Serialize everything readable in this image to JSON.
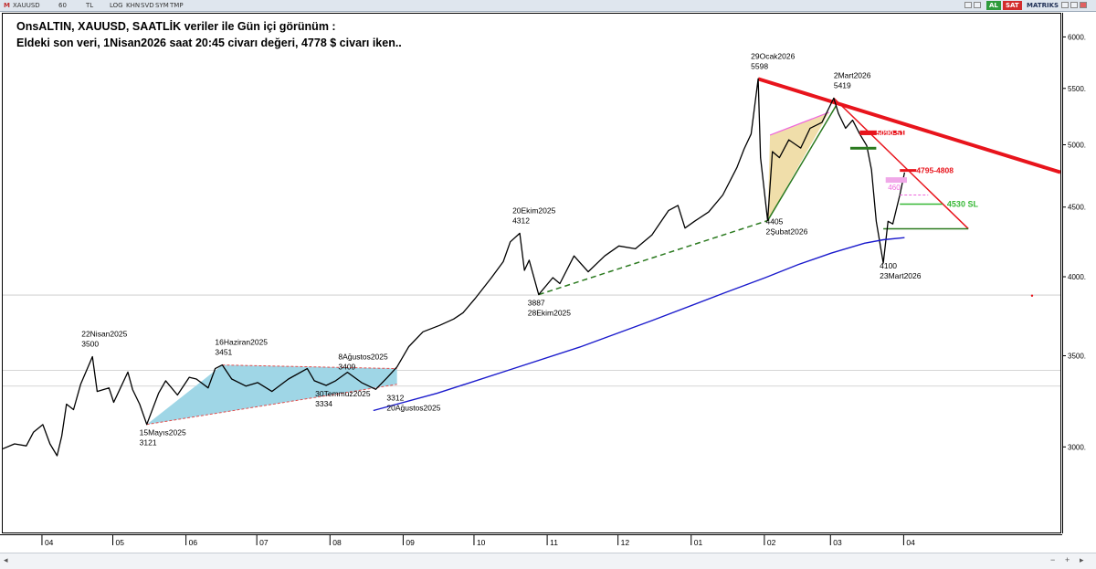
{
  "window": {
    "symbol": "XAUUSD",
    "toolbar_items": [
      "60",
      "TL",
      "LOG",
      "KHN",
      "SVD",
      "SYM",
      "TMP"
    ],
    "flags": [
      "AL",
      "SAT"
    ],
    "matriks": "MATRIKS"
  },
  "heading": {
    "line1": "OnsALTIN, XAUUSD, SAATLİK veriler ile Gün içi görünüm :",
    "line2": "Eldeki son veri, 1Nisan2026 saat 20:45 civarı değeri, 4778 $ civarı iken.."
  },
  "colors": {
    "price": "#000000",
    "ma": "#1a1acc",
    "resistance": "#e8141c",
    "support": "#2b7a1f",
    "wedge_fill": "#9fd6e6",
    "triangle_fill": "#f0deaa",
    "target_green": "#37b836",
    "pink": "#ee66dd"
  },
  "chart_data": {
    "type": "line",
    "title": "",
    "y_scale": "log",
    "ylim": [
      2600,
      6250
    ],
    "y_ticks": [
      3000,
      3500,
      4000,
      4500,
      5000,
      5500,
      6000
    ],
    "y_tick_labels": [
      "3000.",
      "3500.",
      "4000.",
      "4500.",
      "5000.",
      "5500.",
      "6000."
    ],
    "x_range": [
      "2025-03-15",
      "2026-06-06"
    ],
    "x_ticks": [
      {
        "date": "2025-04-01",
        "label": "04"
      },
      {
        "date": "2025-05-01",
        "label": "05"
      },
      {
        "date": "2025-06-01",
        "label": "06"
      },
      {
        "date": "2025-07-01",
        "label": "07"
      },
      {
        "date": "2025-08-01",
        "label": "08"
      },
      {
        "date": "2025-09-01",
        "label": "09"
      },
      {
        "date": "2025-10-01",
        "label": "10"
      },
      {
        "date": "2025-11-01",
        "label": "11"
      },
      {
        "date": "2025-12-01",
        "label": "12"
      },
      {
        "date": "2026-01-01",
        "label": "01"
      },
      {
        "date": "2026-02-01",
        "label": "02"
      },
      {
        "date": "2026-03-01",
        "label": "03"
      },
      {
        "date": "2026-04-01",
        "label": "04"
      }
    ],
    "series": [
      {
        "key": "price",
        "points": [
          [
            "2025-03-15",
            2995
          ],
          [
            "2025-03-20",
            3020
          ],
          [
            "2025-03-25",
            3010
          ],
          [
            "2025-03-28",
            3080
          ],
          [
            "2025-04-01",
            3120
          ],
          [
            "2025-04-04",
            3020
          ],
          [
            "2025-04-07",
            2960
          ],
          [
            "2025-04-09",
            3060
          ],
          [
            "2025-04-11",
            3230
          ],
          [
            "2025-04-14",
            3200
          ],
          [
            "2025-04-17",
            3340
          ],
          [
            "2025-04-22",
            3500
          ],
          [
            "2025-04-24",
            3300
          ],
          [
            "2025-04-29",
            3320
          ],
          [
            "2025-05-01",
            3240
          ],
          [
            "2025-05-07",
            3410
          ],
          [
            "2025-05-09",
            3310
          ],
          [
            "2025-05-12",
            3230
          ],
          [
            "2025-05-15",
            3121
          ],
          [
            "2025-05-20",
            3290
          ],
          [
            "2025-05-23",
            3360
          ],
          [
            "2025-05-28",
            3280
          ],
          [
            "2025-06-02",
            3380
          ],
          [
            "2025-06-05",
            3370
          ],
          [
            "2025-06-10",
            3320
          ],
          [
            "2025-06-13",
            3430
          ],
          [
            "2025-06-16",
            3451
          ],
          [
            "2025-06-20",
            3370
          ],
          [
            "2025-06-26",
            3330
          ],
          [
            "2025-07-01",
            3350
          ],
          [
            "2025-07-07",
            3300
          ],
          [
            "2025-07-14",
            3370
          ],
          [
            "2025-07-22",
            3430
          ],
          [
            "2025-07-25",
            3360
          ],
          [
            "2025-07-30",
            3334
          ],
          [
            "2025-08-03",
            3360
          ],
          [
            "2025-08-08",
            3409
          ],
          [
            "2025-08-14",
            3350
          ],
          [
            "2025-08-20",
            3312
          ],
          [
            "2025-08-25",
            3380
          ],
          [
            "2025-08-29",
            3440
          ],
          [
            "2025-09-03",
            3560
          ],
          [
            "2025-09-09",
            3650
          ],
          [
            "2025-09-16",
            3690
          ],
          [
            "2025-09-22",
            3730
          ],
          [
            "2025-09-26",
            3770
          ],
          [
            "2025-10-01",
            3860
          ],
          [
            "2025-10-08",
            4000
          ],
          [
            "2025-10-13",
            4110
          ],
          [
            "2025-10-16",
            4250
          ],
          [
            "2025-10-20",
            4312
          ],
          [
            "2025-10-22",
            4050
          ],
          [
            "2025-10-24",
            4120
          ],
          [
            "2025-10-28",
            3887
          ],
          [
            "2025-11-03",
            4000
          ],
          [
            "2025-11-06",
            3960
          ],
          [
            "2025-11-12",
            4150
          ],
          [
            "2025-11-18",
            4040
          ],
          [
            "2025-11-25",
            4150
          ],
          [
            "2025-12-01",
            4220
          ],
          [
            "2025-12-08",
            4200
          ],
          [
            "2025-12-15",
            4300
          ],
          [
            "2025-12-22",
            4480
          ],
          [
            "2025-12-26",
            4520
          ],
          [
            "2025-12-29",
            4350
          ],
          [
            "2026-01-02",
            4400
          ],
          [
            "2026-01-08",
            4470
          ],
          [
            "2026-01-14",
            4600
          ],
          [
            "2026-01-20",
            4820
          ],
          [
            "2026-01-23",
            4970
          ],
          [
            "2026-01-26",
            5100
          ],
          [
            "2026-01-29",
            5598
          ],
          [
            "2026-01-30",
            4900
          ],
          [
            "2026-02-02",
            4405
          ],
          [
            "2026-02-04",
            4950
          ],
          [
            "2026-02-07",
            4900
          ],
          [
            "2026-02-11",
            5050
          ],
          [
            "2026-02-16",
            4980
          ],
          [
            "2026-02-20",
            5150
          ],
          [
            "2026-02-25",
            5200
          ],
          [
            "2026-03-02",
            5419
          ],
          [
            "2026-03-04",
            5280
          ],
          [
            "2026-03-07",
            5150
          ],
          [
            "2026-03-10",
            5220
          ],
          [
            "2026-03-13",
            5100
          ],
          [
            "2026-03-16",
            5000
          ],
          [
            "2026-03-18",
            4800
          ],
          [
            "2026-03-20",
            4400
          ],
          [
            "2026-03-23",
            4100
          ],
          [
            "2026-03-25",
            4400
          ],
          [
            "2026-03-27",
            4380
          ],
          [
            "2026-03-30",
            4600
          ],
          [
            "2026-04-01",
            4778
          ]
        ]
      },
      {
        "key": "moving_average",
        "points": [
          [
            "2025-08-19",
            3195
          ],
          [
            "2025-09-15",
            3290
          ],
          [
            "2025-10-15",
            3420
          ],
          [
            "2025-11-15",
            3560
          ],
          [
            "2025-12-15",
            3720
          ],
          [
            "2026-01-15",
            3900
          ],
          [
            "2026-02-01",
            4000
          ],
          [
            "2026-02-15",
            4090
          ],
          [
            "2026-03-01",
            4170
          ],
          [
            "2026-03-15",
            4240
          ],
          [
            "2026-03-23",
            4265
          ],
          [
            "2026-04-01",
            4280
          ]
        ]
      }
    ],
    "annotations": [
      {
        "date": "22Nisan2025",
        "value": "3500"
      },
      {
        "date": "16Haziran2025",
        "value": "3451"
      },
      {
        "date": "8Ağustos2025",
        "value": "3409"
      },
      {
        "date": "15Mayıs2025",
        "value": "3121"
      },
      {
        "date": "30Temmuz2025",
        "value": "3334"
      },
      {
        "date": "20Ağustos2025",
        "value": "3312"
      },
      {
        "date": "20Ekim2025",
        "value": "4312"
      },
      {
        "date": "28Ekim2025",
        "value": "3887"
      },
      {
        "date": "29Ocak2026",
        "value": "5598"
      },
      {
        "date": "2Şubat2026",
        "value": "4405"
      },
      {
        "date": "2Mart2026",
        "value": "5419"
      },
      {
        "date": "23Mart2026",
        "value": "4100"
      }
    ],
    "zones": [
      {
        "label": "5090-5130",
        "low": 5090,
        "high": 5130
      },
      {
        "label": "4795-4808",
        "low": 4795,
        "high": 4808
      },
      {
        "label": "4530 SL",
        "value": 4530
      },
      {
        "label": "460",
        "value": 4600
      }
    ],
    "horizontal_levels": [
      3884,
      3420,
      3330
    ]
  }
}
